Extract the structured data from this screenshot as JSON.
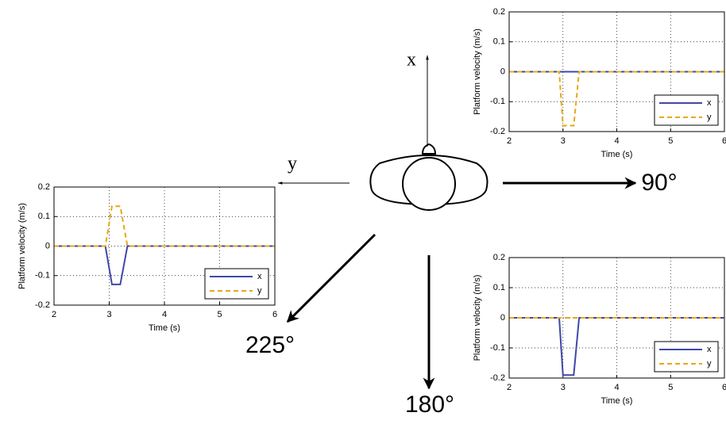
{
  "chart_data": [
    {
      "type": "line",
      "xlabel": "Time (s)",
      "ylabel": "Platform velocity (m/s)",
      "x": [
        2,
        2.93,
        3.0,
        3.2,
        3.3,
        6
      ],
      "series": [
        {
          "name": "x",
          "color": "#3f48a8",
          "linestyle": "solid",
          "values": [
            0,
            0,
            0,
            0,
            0,
            0
          ]
        },
        {
          "name": "y",
          "color": "#e6a817",
          "linestyle": "dashed",
          "values": [
            0,
            0,
            -0.18,
            -0.18,
            0,
            0
          ]
        }
      ],
      "xlim": [
        2,
        6
      ],
      "ylim": [
        -0.2,
        0.2
      ],
      "xticks": [
        2,
        3,
        4,
        5,
        6
      ],
      "yticks": [
        -0.2,
        -0.1,
        0,
        0.1,
        0.2
      ],
      "grid": true,
      "legend": "lower right"
    },
    {
      "type": "line",
      "xlabel": "Time (s)",
      "ylabel": "Platform velocity (m/s)",
      "x": [
        2,
        2.93,
        3.05,
        3.2,
        3.33,
        6
      ],
      "series": [
        {
          "name": "x",
          "color": "#3f48a8",
          "linestyle": "solid",
          "values": [
            0,
            0,
            -0.13,
            -0.13,
            0,
            0
          ]
        },
        {
          "name": "y",
          "color": "#e6a817",
          "linestyle": "dashed",
          "values": [
            0,
            0,
            0.135,
            0.135,
            0,
            0
          ]
        }
      ],
      "xlim": [
        2,
        6
      ],
      "ylim": [
        -0.2,
        0.2
      ],
      "xticks": [
        2,
        3,
        4,
        5,
        6
      ],
      "yticks": [
        -0.2,
        -0.1,
        0,
        0.1,
        0.2
      ],
      "grid": true,
      "legend": "lower right"
    },
    {
      "type": "line",
      "xlabel": "Time (s)",
      "ylabel": "Platform velocity (m/s)",
      "x": [
        2,
        2.93,
        3.0,
        3.2,
        3.3,
        6
      ],
      "series": [
        {
          "name": "x",
          "color": "#3f48a8",
          "linestyle": "solid",
          "values": [
            0,
            0,
            -0.19,
            -0.19,
            0,
            0
          ]
        },
        {
          "name": "y",
          "color": "#e6a817",
          "linestyle": "dashed",
          "values": [
            0,
            0,
            0,
            0,
            0,
            0
          ]
        }
      ],
      "xlim": [
        2,
        6
      ],
      "ylim": [
        -0.2,
        0.2
      ],
      "xticks": [
        2,
        3,
        4,
        5,
        6
      ],
      "yticks": [
        -0.2,
        -0.1,
        0,
        0.1,
        0.2
      ],
      "grid": true,
      "legend": "lower right"
    }
  ],
  "diagram": {
    "axes": [
      "x",
      "y"
    ],
    "directions": [
      "90°",
      "180°",
      "225°"
    ]
  }
}
